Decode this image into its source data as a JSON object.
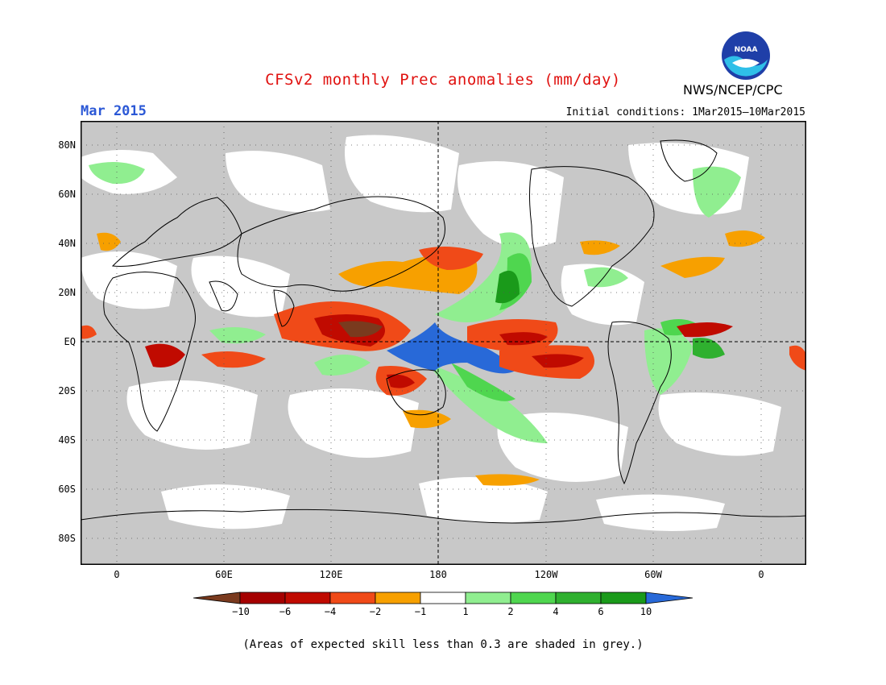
{
  "header": {
    "title": "CFSv2 monthly Prec anomalies (mm/day)",
    "month": "Mar 2015",
    "initial_conditions": "Initial conditions: 1Mar2015–10Mar2015",
    "organization": "NWS/NCEP/CPC",
    "logo_text": "NOAA"
  },
  "map": {
    "lat_labels": [
      "80N",
      "60N",
      "40N",
      "20N",
      "EQ",
      "20S",
      "40S",
      "60S",
      "80S"
    ],
    "lon_labels": [
      "0",
      "60E",
      "120E",
      "180",
      "120W",
      "60W",
      "0"
    ],
    "colors": {
      "background_grey": "#c8c8c8",
      "dark_brown": "#7a3a1e",
      "dark_red": "#a50000",
      "red": "#d42000",
      "orange_red": "#f04a18",
      "orange": "#f7a000",
      "light_green": "#90ee90",
      "green": "#4fd64f",
      "mid_green": "#2fb02f",
      "dark_green": "#1a9a1a",
      "blue": "#2869d8"
    }
  },
  "colorbar": {
    "labels": [
      "−10",
      "−6",
      "−4",
      "−2",
      "−1",
      "1",
      "2",
      "4",
      "6",
      "10"
    ],
    "colors": [
      "#7a3a1e",
      "#a50000",
      "#c00a00",
      "#f04a18",
      "#f7a000",
      "#ffffff",
      "#90ee90",
      "#4fd64f",
      "#2fb02f",
      "#1a9a1a",
      "#2869d8"
    ]
  },
  "caption": "(Areas of expected skill less than 0.3 are shaded in grey.)"
}
